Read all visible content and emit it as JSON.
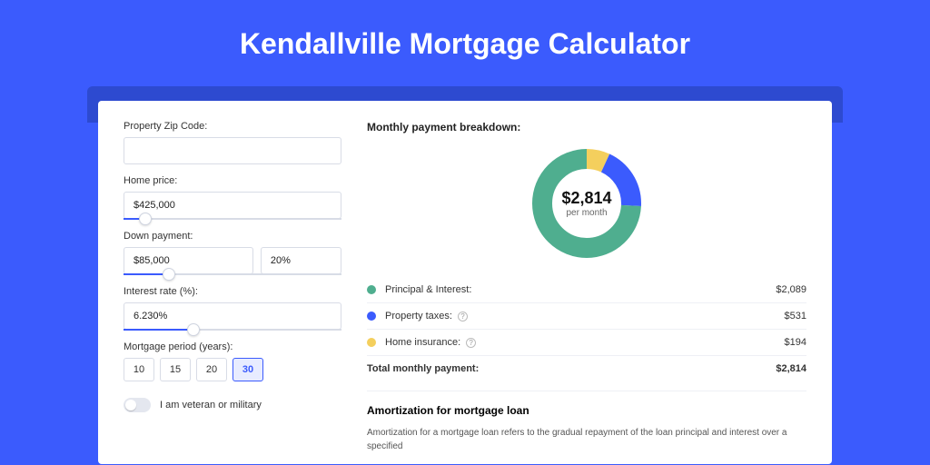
{
  "page": {
    "title": "Kendallville Mortgage Calculator",
    "bg_color": "#3b5bfd",
    "shadow_color": "#2d4ad0",
    "card_bg": "#ffffff"
  },
  "form": {
    "zip": {
      "label": "Property Zip Code:",
      "value": ""
    },
    "home_price": {
      "label": "Home price:",
      "value": "$425,000",
      "slider_pct": 10
    },
    "down_payment": {
      "label": "Down payment:",
      "value": "$85,000",
      "pct_value": "20%",
      "slider_pct": 21
    },
    "interest_rate": {
      "label": "Interest rate (%):",
      "value": "6.230%",
      "slider_pct": 32
    },
    "period": {
      "label": "Mortgage period (years):",
      "options": [
        "10",
        "15",
        "20",
        "30"
      ],
      "active": "30"
    },
    "veteran": {
      "label": "I am veteran or military",
      "on": false
    }
  },
  "breakdown": {
    "title": "Monthly payment breakdown:",
    "donut": {
      "amount": "$2,814",
      "subtext": "per month",
      "ring_width": 22,
      "radius": 60,
      "slices": [
        {
          "name": "home_insurance",
          "value": 194,
          "color": "#f4cf5d"
        },
        {
          "name": "property_taxes",
          "value": 531,
          "color": "#3b5bfd"
        },
        {
          "name": "principal_interest",
          "value": 2089,
          "color": "#4fae8f"
        }
      ],
      "bg_color": "#ffffff"
    },
    "rows": [
      {
        "label": "Principal & Interest:",
        "value": "$2,089",
        "color": "#4fae8f",
        "help": false
      },
      {
        "label": "Property taxes:",
        "value": "$531",
        "color": "#3b5bfd",
        "help": true
      },
      {
        "label": "Home insurance:",
        "value": "$194",
        "color": "#f4cf5d",
        "help": true
      }
    ],
    "total": {
      "label": "Total monthly payment:",
      "value": "$2,814"
    }
  },
  "amortization": {
    "title": "Amortization for mortgage loan",
    "text": "Amortization for a mortgage loan refers to the gradual repayment of the loan principal and interest over a specified"
  }
}
